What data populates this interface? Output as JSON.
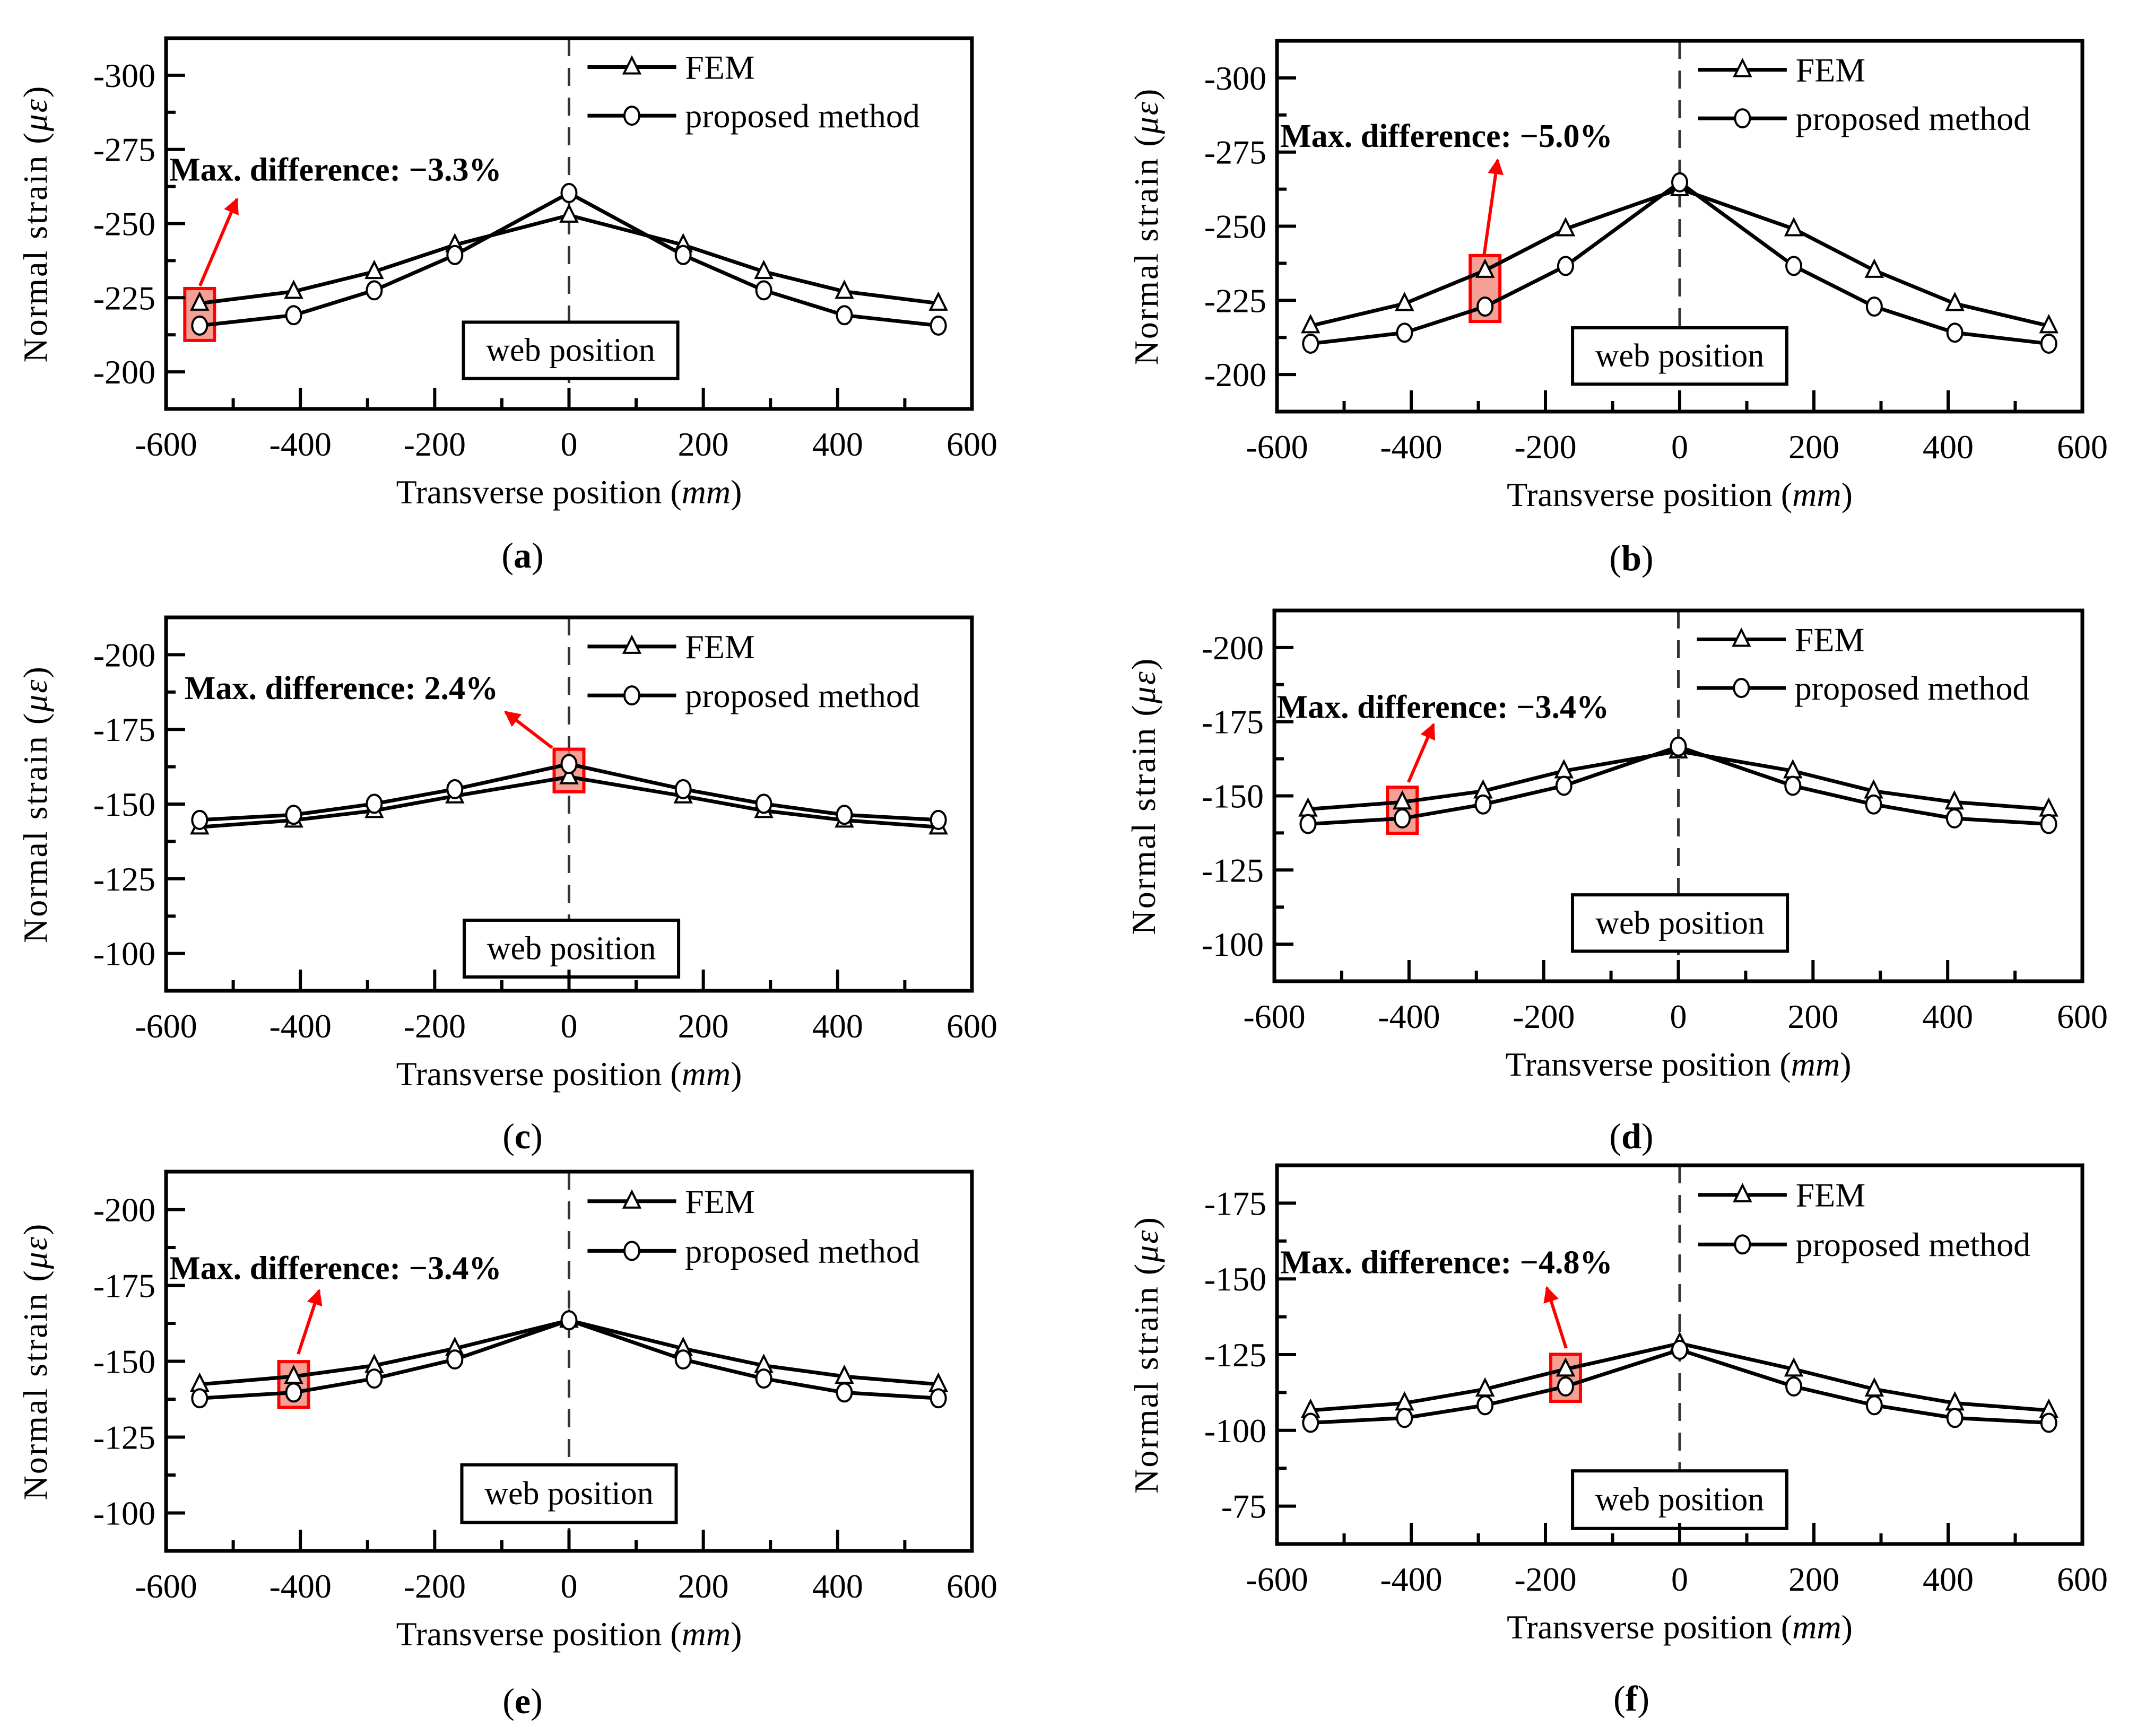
{
  "chart_data": [
    {
      "type": "line",
      "caption": "(a)",
      "xlabel": "Transverse position (mm)",
      "ylabel": "Normal strain (με)",
      "xlim": [
        -600,
        600
      ],
      "ylim": [
        -312.5,
        -187.5
      ],
      "xticks": [
        -600,
        -400,
        -200,
        0,
        200,
        400,
        600
      ],
      "yticks": [
        -300,
        -275,
        -250,
        -225,
        -200
      ],
      "x": [
        -550,
        -410,
        -290,
        -170,
        0,
        170,
        290,
        410,
        550
      ],
      "series": [
        {
          "name": "FEM",
          "marker": "triangle",
          "values": [
            -223.1,
            -227.1,
            -233.8,
            -242.8,
            -252.8,
            -242.8,
            -233.8,
            -227.1,
            -223.1
          ]
        },
        {
          "name": "proposed method",
          "marker": "circle",
          "values": [
            -215.6,
            -219.1,
            -227.5,
            -239.4,
            -260.3,
            -239.4,
            -227.5,
            -219.1,
            -215.6
          ]
        }
      ],
      "annotation": {
        "text": "Max. difference: −3.3%",
        "highlight_x": -550
      },
      "reference_line": {
        "x": 0,
        "label": "web position"
      },
      "legend": "top-right",
      "grid": false
    },
    {
      "type": "line",
      "caption": "(b)",
      "xlabel": "Transverse position (mm)",
      "ylabel": "Normal strain (με)",
      "xlim": [
        -600,
        600
      ],
      "ylim": [
        -312.5,
        -187.5
      ],
      "xticks": [
        -600,
        -400,
        -200,
        0,
        200,
        400,
        600
      ],
      "yticks": [
        -300,
        -275,
        -250,
        -225,
        -200
      ],
      "x": [
        -550,
        -410,
        -290,
        -170,
        0,
        170,
        290,
        410,
        550
      ],
      "series": [
        {
          "name": "FEM",
          "marker": "triangle",
          "values": [
            -216.4,
            -223.9,
            -235.1,
            -249.1,
            -262.6,
            -249.1,
            -235.1,
            -223.9,
            -216.4
          ]
        },
        {
          "name": "proposed method",
          "marker": "circle",
          "values": [
            -210.4,
            -214.1,
            -222.9,
            -236.6,
            -264.8,
            -236.6,
            -222.9,
            -214.1,
            -210.4
          ]
        }
      ],
      "annotation": {
        "text": "Max. difference: −5.0%",
        "highlight_x": -290
      },
      "reference_line": {
        "x": 0,
        "label": "web position"
      },
      "legend": "top-right",
      "grid": false
    },
    {
      "type": "line",
      "caption": "(c)",
      "xlabel": "Transverse position (mm)",
      "ylabel": "Normal strain (με)",
      "xlim": [
        -600,
        600
      ],
      "ylim": [
        -212.5,
        -87.5
      ],
      "xticks": [
        -600,
        -400,
        -200,
        0,
        200,
        400,
        600
      ],
      "yticks": [
        -200,
        -175,
        -150,
        -125,
        -100
      ],
      "x": [
        -550,
        -410,
        -290,
        -170,
        0,
        170,
        290,
        410,
        550
      ],
      "series": [
        {
          "name": "FEM",
          "marker": "triangle",
          "values": [
            -142.3,
            -144.6,
            -147.8,
            -152.7,
            -159.1,
            -152.7,
            -147.8,
            -144.6,
            -142.3
          ]
        },
        {
          "name": "proposed method",
          "marker": "circle",
          "values": [
            -144.7,
            -146.4,
            -150.1,
            -155.0,
            -163.4,
            -155.0,
            -150.1,
            -146.4,
            -144.7
          ]
        }
      ],
      "annotation": {
        "text": "Max. difference: 2.4%",
        "highlight_x": 0
      },
      "reference_line": {
        "x": 0,
        "label": "web position"
      },
      "legend": "top-right",
      "grid": false
    },
    {
      "type": "line",
      "caption": "(d)",
      "xlabel": "Transverse position (mm)",
      "ylabel": "Normal strain (με)",
      "xlim": [
        -600,
        600
      ],
      "ylim": [
        -212.5,
        -87.5
      ],
      "xticks": [
        -600,
        -400,
        -200,
        0,
        200,
        400,
        600
      ],
      "yticks": [
        -200,
        -175,
        -150,
        -125,
        -100
      ],
      "x": [
        -550,
        -410,
        -290,
        -170,
        0,
        170,
        290,
        410,
        550
      ],
      "series": [
        {
          "name": "FEM",
          "marker": "triangle",
          "values": [
            -145.5,
            -147.9,
            -151.6,
            -158.4,
            -165.1,
            -158.4,
            -151.6,
            -147.9,
            -145.5
          ]
        },
        {
          "name": "proposed method",
          "marker": "circle",
          "values": [
            -140.5,
            -142.4,
            -147.1,
            -153.4,
            -166.6,
            -153.4,
            -147.1,
            -142.4,
            -140.5
          ]
        }
      ],
      "annotation": {
        "text": "Max. difference: −3.4%",
        "highlight_x": -410
      },
      "reference_line": {
        "x": 0,
        "label": "web position"
      },
      "legend": "top-right",
      "grid": false
    },
    {
      "type": "line",
      "caption": "(e)",
      "xlabel": "Transverse position (mm)",
      "ylabel": "Normal strain (με)",
      "xlim": [
        -600,
        600
      ],
      "ylim": [
        -212.5,
        -87.5
      ],
      "xticks": [
        -600,
        -400,
        -200,
        0,
        200,
        400,
        600
      ],
      "yticks": [
        -200,
        -175,
        -150,
        -125,
        -100
      ],
      "x": [
        -550,
        -410,
        -290,
        -170,
        0,
        170,
        290,
        410,
        550
      ],
      "series": [
        {
          "name": "FEM",
          "marker": "triangle",
          "values": [
            -142.4,
            -145.0,
            -148.6,
            -154.2,
            -163.5,
            -154.2,
            -148.6,
            -145.0,
            -142.4
          ]
        },
        {
          "name": "proposed method",
          "marker": "circle",
          "values": [
            -137.8,
            -139.7,
            -144.3,
            -150.6,
            -163.5,
            -150.6,
            -144.3,
            -139.7,
            -137.8
          ]
        }
      ],
      "annotation": {
        "text": "Max. difference: −3.4%",
        "highlight_x": -410
      },
      "reference_line": {
        "x": 0,
        "label": "web position"
      },
      "legend": "top-right",
      "grid": false
    },
    {
      "type": "line",
      "caption": "(f)",
      "xlabel": "Transverse position (mm)",
      "ylabel": "Normal strain (με)",
      "xlim": [
        -600,
        600
      ],
      "ylim": [
        -187.5,
        -62.5
      ],
      "xticks": [
        -600,
        -400,
        -200,
        0,
        200,
        400,
        600
      ],
      "yticks": [
        -175,
        -150,
        -125,
        -100,
        -75
      ],
      "x": [
        -550,
        -410,
        -290,
        -170,
        0,
        170,
        290,
        410,
        550
      ],
      "series": [
        {
          "name": "FEM",
          "marker": "triangle",
          "values": [
            -106.6,
            -109.0,
            -113.6,
            -120.2,
            -128.7,
            -120.2,
            -113.6,
            -109.0,
            -106.6
          ]
        },
        {
          "name": "proposed method",
          "marker": "circle",
          "values": [
            -102.5,
            -104.1,
            -108.3,
            -114.5,
            -126.6,
            -114.5,
            -108.3,
            -104.1,
            -102.5
          ]
        }
      ],
      "annotation": {
        "text": "Max. difference: −4.8%",
        "highlight_x": -170
      },
      "reference_line": {
        "x": 0,
        "label": "web position"
      },
      "legend": "top-right",
      "grid": false
    }
  ],
  "colors": {
    "line": "#000000",
    "highlight": "#ff0000",
    "highlight_fill": "#f08070"
  }
}
